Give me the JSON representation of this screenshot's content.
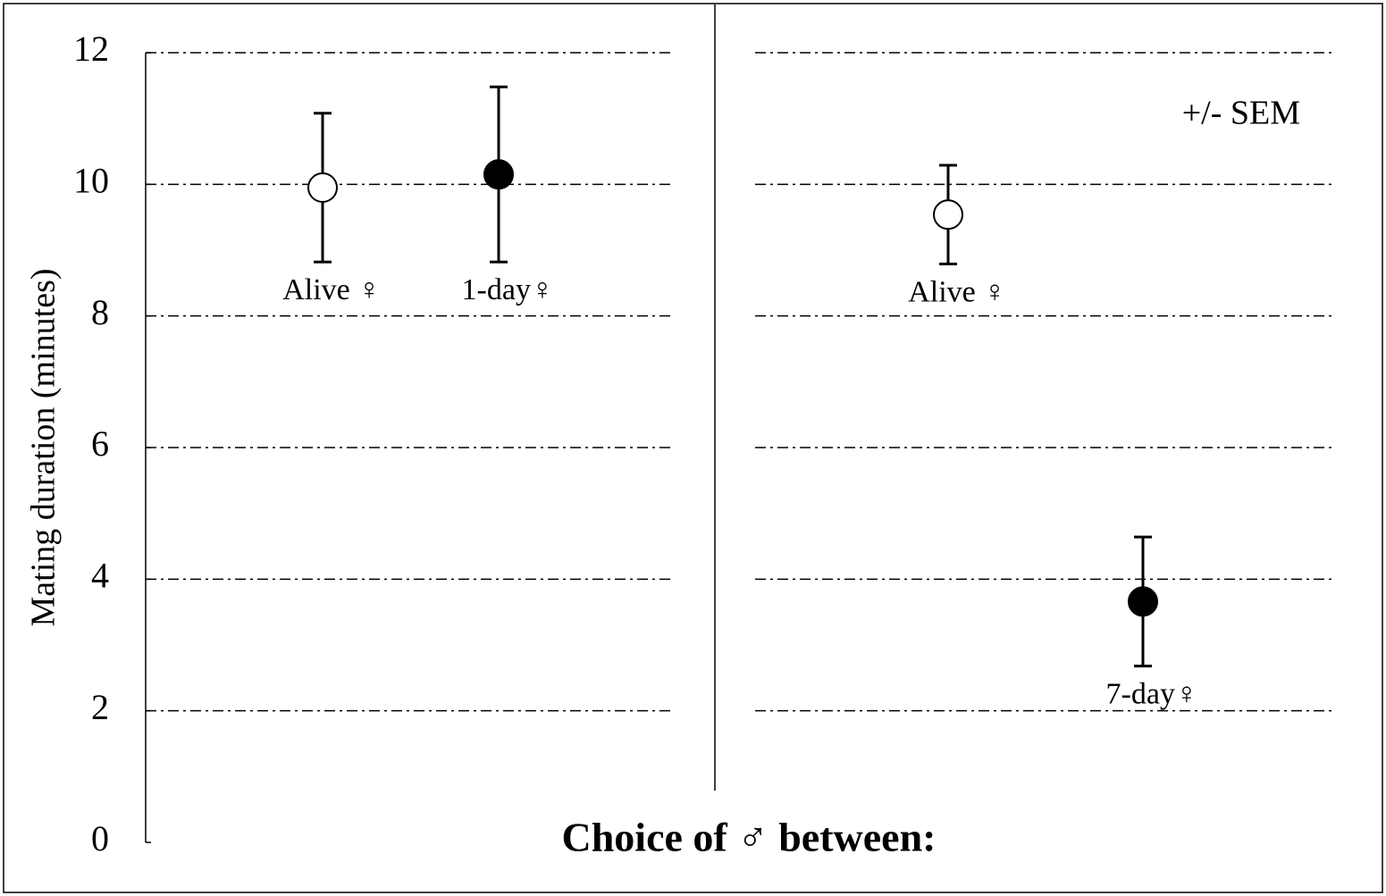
{
  "chart_data": {
    "type": "errorbar",
    "y_label": "Mating duration (minutes)",
    "x_label": "Choice of ♂ between:",
    "annotation": "+/- SEM",
    "ylim": [
      0,
      12
    ],
    "yticks": [
      0,
      2,
      4,
      6,
      8,
      10,
      12
    ],
    "grid": true,
    "panels": [
      {
        "points": [
          {
            "label": "Alive ♀",
            "value": 9.95,
            "error": 1.13,
            "fill": "#ffffff"
          },
          {
            "label": "1-day♀",
            "value": 10.15,
            "error": 1.33,
            "fill": "#000000"
          }
        ]
      },
      {
        "points": [
          {
            "label": "Alive ♀",
            "value": 9.54,
            "error": 0.75,
            "fill": "#ffffff"
          },
          {
            "label": "7-day♀",
            "value": 3.66,
            "error": 0.98,
            "fill": "#000000"
          }
        ]
      }
    ]
  }
}
